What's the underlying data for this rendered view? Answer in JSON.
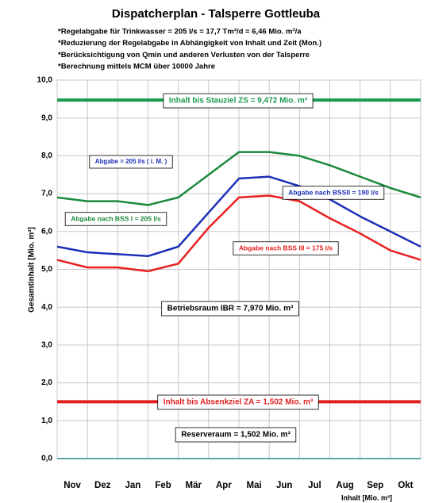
{
  "chart_data": {
    "type": "line",
    "title": "Dispatcherplan - Talsperre Gottleuba",
    "notes": [
      "*Regelabgabe für Trinkwasser = 205 l/s = 17,7 Tm³/d = 6,46 Mio. m³/a",
      "*Reduzierung der Regelabgabe in Abhängigkeit von Inhalt und Zeit (Mon.)",
      "*Berücksichtigung von Qmin und anderen Verlusten von der Talsperre",
      "*Berechnung mittels MCM über 10000 Jahre"
    ],
    "y_label": "Gesamtinhalt [Mio. m³]",
    "x_label": "Inhalt [Mio. m³]",
    "categories": [
      "Nov",
      "Dez",
      "Jan",
      "Feb",
      "Mär",
      "Apr",
      "Mai",
      "Jun",
      "Jul",
      "Aug",
      "Sep",
      "Okt"
    ],
    "x": [
      0,
      1,
      2,
      3,
      4,
      5,
      6,
      7,
      8,
      9,
      10,
      11,
      12
    ],
    "xlim": [
      0,
      12
    ],
    "ylim": [
      0,
      10
    ],
    "yticks": [
      {
        "value": 0,
        "label": "0,0"
      },
      {
        "value": 1,
        "label": "1,0"
      },
      {
        "value": 2,
        "label": "2,0"
      },
      {
        "value": 3,
        "label": "3,0"
      },
      {
        "value": 4,
        "label": "4,0"
      },
      {
        "value": 5,
        "label": "5,0"
      },
      {
        "value": 6,
        "label": "6,0"
      },
      {
        "value": 7,
        "label": "7,0"
      },
      {
        "value": 8,
        "label": "8,0"
      },
      {
        "value": 9,
        "label": "9,0"
      },
      {
        "value": 10,
        "label": "10,0"
      }
    ],
    "grid": true,
    "series": [
      {
        "color": "#1a8a3a",
        "values": [
          6.9,
          6.8,
          6.8,
          6.7,
          6.9,
          7.5,
          8.1,
          8.1,
          8.0,
          7.75,
          7.45,
          7.15,
          6.9
        ]
      },
      {
        "color": "#1c2fb8",
        "values": [
          5.6,
          5.45,
          5.4,
          5.35,
          5.6,
          6.5,
          7.4,
          7.45,
          7.2,
          6.85,
          6.4,
          6.0,
          5.6
        ]
      },
      {
        "color": "#e82020",
        "values": [
          5.25,
          5.05,
          5.05,
          4.95,
          5.15,
          6.1,
          6.9,
          6.95,
          6.8,
          6.35,
          5.95,
          5.5,
          5.25
        ]
      }
    ],
    "hlines": [
      {
        "value": 9.472,
        "color": "#1a9a50"
      },
      {
        "value": 1.502,
        "color": "#e02020"
      }
    ],
    "annotations": [
      {
        "text": "Inhalt bis Stauziel ZS = 9,472 Mio. m³",
        "color": "#1a9a50"
      },
      {
        "text": "Abgabe = 205 l/s ( i. M. )",
        "color": "#1c2fb8"
      },
      {
        "text": "Abgabe nach BSSII = 190 l/s",
        "color": "#1c2fb8"
      },
      {
        "text": "Abgabe nach BSS I = 205   l/s",
        "color": "#1a8a3a"
      },
      {
        "text": "Abgabe nach BSS III = 175 l/s",
        "color": "#e82020"
      },
      {
        "text": "Betriebsraum IBR = 7,970 Mio. m³",
        "color": "#000000"
      },
      {
        "text": "Inhalt bis Absenkziel ZA = 1,502 Mio. m³",
        "color": "#e02020"
      },
      {
        "text": "Reserveraum = 1,502 Mio. m³",
        "color": "#000000"
      }
    ]
  }
}
